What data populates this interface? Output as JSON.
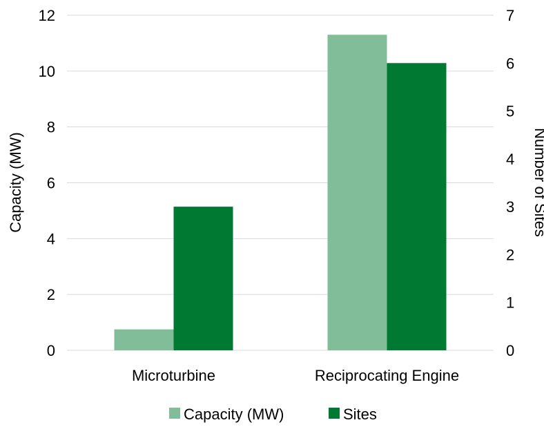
{
  "chart_data": {
    "type": "bar",
    "categories": [
      "Microturbine",
      "Reciprocating Engine"
    ],
    "series": [
      {
        "name": "Capacity (MW)",
        "axis": "left",
        "values": [
          0.75,
          11.3
        ],
        "color": "#80bd98"
      },
      {
        "name": "Sites",
        "axis": "right",
        "values": [
          3,
          6
        ],
        "color": "#007a33"
      }
    ],
    "y_left": {
      "label": "Capacity (MW)",
      "ylim": [
        0,
        12
      ],
      "ticks": [
        "0",
        "2",
        "4",
        "6",
        "8",
        "10",
        "12"
      ]
    },
    "y_right": {
      "label": "Number of Sites",
      "ylim": [
        0,
        7
      ],
      "ticks": [
        "0",
        "1",
        "2",
        "3",
        "4",
        "5",
        "6",
        "7"
      ]
    },
    "grid": true,
    "legend": "bottom"
  }
}
